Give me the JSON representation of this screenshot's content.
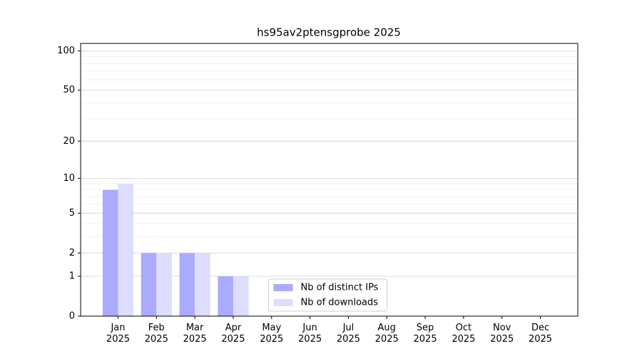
{
  "chart_data": {
    "type": "bar",
    "title": "hs95av2ptensgprobe 2025",
    "categories": [
      "Jan\n2025",
      "Feb\n2025",
      "Mar\n2025",
      "Apr\n2025",
      "May\n2025",
      "Jun\n2025",
      "Jul\n2025",
      "Aug\n2025",
      "Sep\n2025",
      "Oct\n2025",
      "Nov\n2025",
      "Dec\n2025"
    ],
    "series": [
      {
        "name": "Nb of distinct IPs",
        "color": "#aaaaff",
        "values": [
          8,
          2,
          2,
          1,
          0,
          0,
          0,
          0,
          0,
          0,
          0,
          0
        ]
      },
      {
        "name": "Nb of downloads",
        "color": "#ddddff",
        "values": [
          9,
          2,
          2,
          1,
          0,
          0,
          0,
          0,
          0,
          0,
          0,
          0
        ]
      }
    ],
    "yscale": "log1p",
    "ylim": [
      0,
      114
    ],
    "yticks": [
      0,
      1,
      2,
      5,
      10,
      20,
      50,
      100
    ],
    "yminorticks": [
      3,
      4,
      6,
      7,
      8,
      9,
      30,
      40,
      60,
      70,
      80,
      90
    ],
    "grid": true,
    "legend": "lower center"
  }
}
